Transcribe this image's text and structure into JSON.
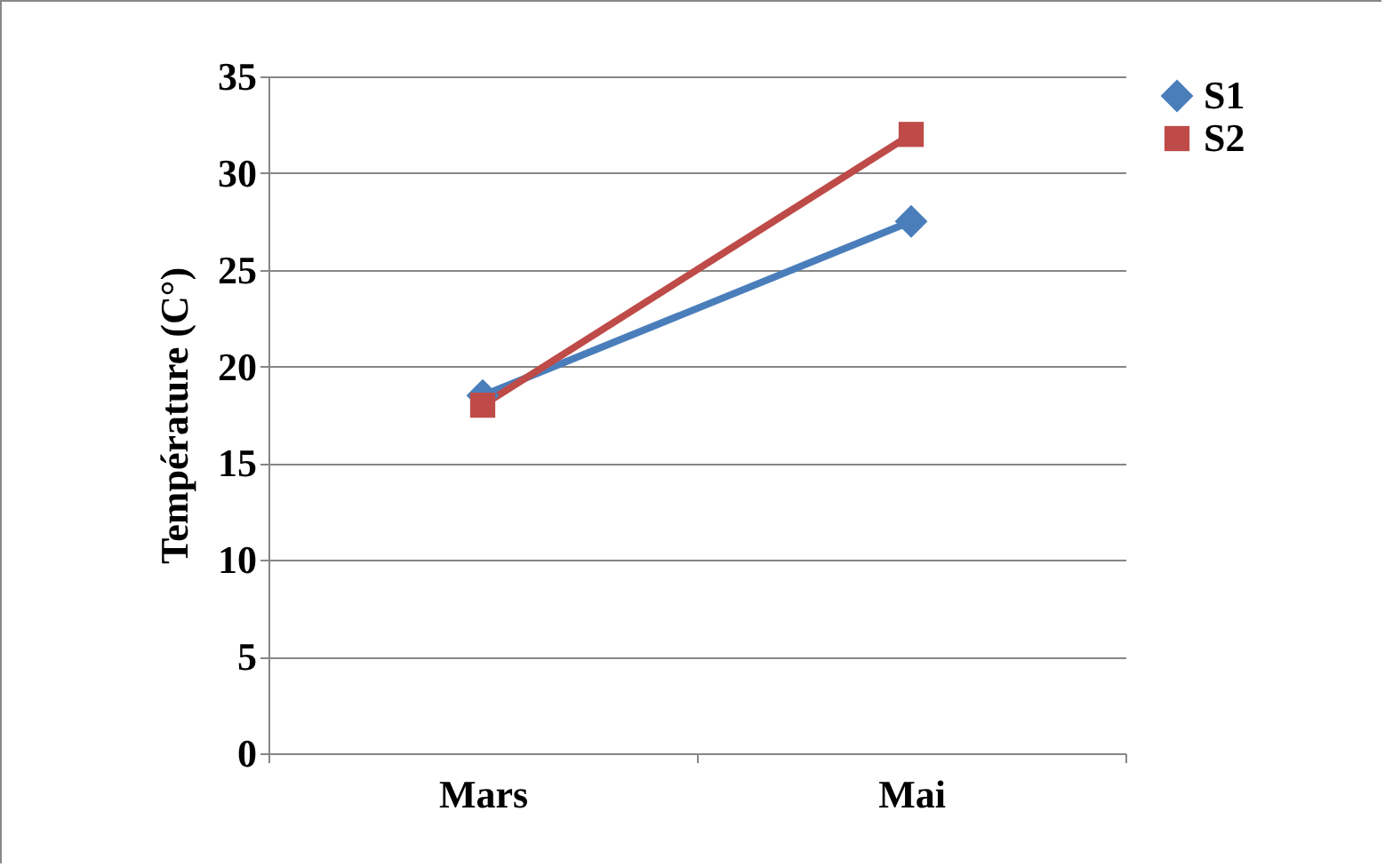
{
  "chart_data": {
    "type": "line",
    "ylabel": "Température (C°)",
    "categories": [
      "Mars",
      "Mai"
    ],
    "series": [
      {
        "name": "S1",
        "color": "#4a7ebb",
        "values": [
          18.5,
          27.5
        ],
        "marker": "diamond"
      },
      {
        "name": "S2",
        "color": "#be4b48",
        "values": [
          18,
          32
        ],
        "marker": "square"
      }
    ],
    "ylim": [
      0,
      35
    ],
    "yticks": [
      0,
      5,
      10,
      15,
      20,
      25,
      30,
      35
    ],
    "grid": "y",
    "legend": "right"
  }
}
